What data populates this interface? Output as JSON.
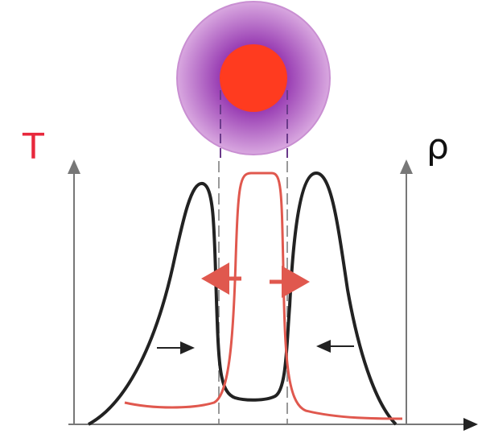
{
  "labels": {
    "temperature": "T",
    "density": "ρ"
  }
}
